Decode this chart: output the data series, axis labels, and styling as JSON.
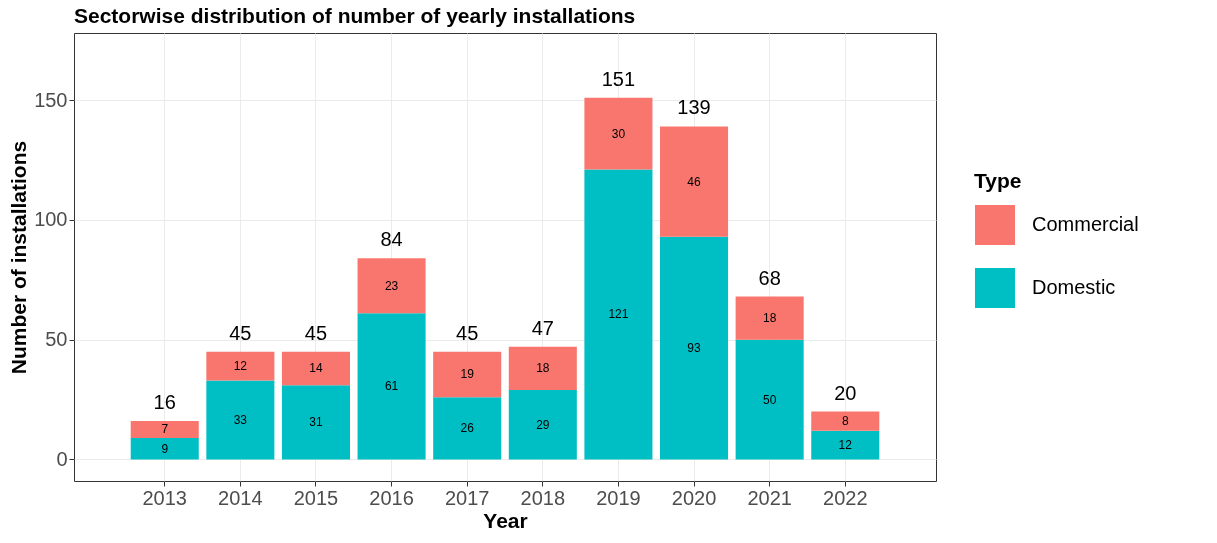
{
  "chart_data": {
    "type": "bar",
    "title": "Sectorwise distribution of number of yearly installations",
    "xlabel": "Year",
    "ylabel": "Number of installations",
    "legend_title": "Type",
    "categories": [
      "2013",
      "2014",
      "2015",
      "2016",
      "2017",
      "2018",
      "2019",
      "2020",
      "2021",
      "2022"
    ],
    "stacked": true,
    "series": [
      {
        "name": "Domestic",
        "color": "#00bfc4",
        "values": [
          9,
          33,
          31,
          61,
          26,
          29,
          121,
          93,
          50,
          12
        ]
      },
      {
        "name": "Commercial",
        "color": "#f8766d",
        "values": [
          7,
          12,
          14,
          23,
          19,
          18,
          30,
          46,
          18,
          8
        ]
      }
    ],
    "totals": [
      "16",
      "45",
      "45",
      "84",
      "45",
      "47",
      "151",
      "139",
      "68",
      "20"
    ],
    "data_labels": true,
    "ylim": [
      -9,
      178
    ],
    "yticks": [
      0,
      50,
      100,
      150
    ],
    "grid": true,
    "legend": "right"
  }
}
